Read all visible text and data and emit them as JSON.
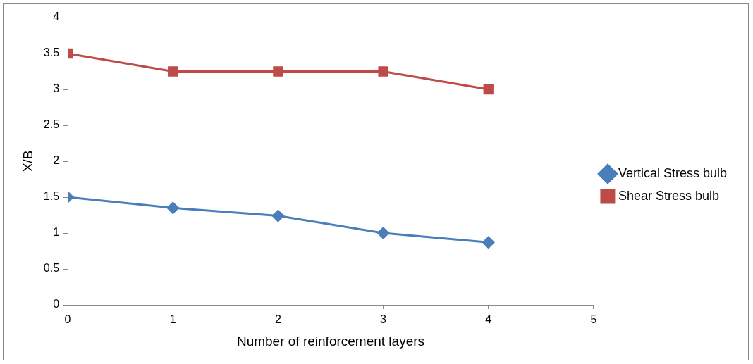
{
  "chart_data": {
    "type": "line",
    "xlabel": "Number of reinforcement layers",
    "ylabel": "X/B",
    "x": [
      0,
      1,
      2,
      3,
      4
    ],
    "series": [
      {
        "name": "Vertical Stress bulb",
        "color": "#4a7ebb",
        "marker": "diamond",
        "values": [
          1.5,
          1.35,
          1.24,
          1.0,
          0.87
        ]
      },
      {
        "name": "Shear Stress bulb",
        "color": "#be4b48",
        "marker": "square",
        "values": [
          3.5,
          3.25,
          3.25,
          3.25,
          3.0
        ]
      }
    ],
    "xlim": [
      0,
      5
    ],
    "xticks": [
      0,
      1,
      2,
      3,
      4,
      5
    ],
    "ylim": [
      0,
      4
    ],
    "yticks": [
      0,
      0.5,
      1,
      1.5,
      2,
      2.5,
      3,
      3.5,
      4
    ],
    "grid": false,
    "legend": "right",
    "line_style": "solid"
  }
}
